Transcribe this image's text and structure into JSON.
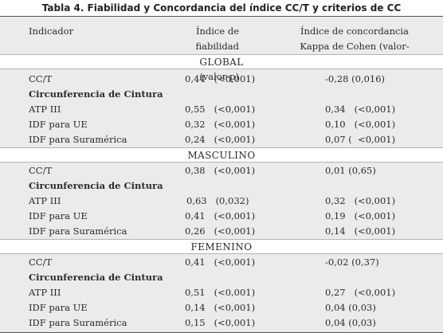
{
  "title": "Tabla 4. Fiabilidad y Concordancia del índice CC/T y criterios de CC",
  "headers": {
    "indicador": "Indicador",
    "fiabilidad_1": "Índice de fiabilidad",
    "fiabilidad_2": "α-Cronbach (valor-p)",
    "concordancia_1": "Índice de concordancia",
    "concordancia_2": "Kappa de Cohen (valor-p)"
  },
  "sections": [
    {
      "label": "GLOBAL",
      "rows": [
        {
          "indicador": "CC/T",
          "fiabilidad": "0,44   (<0,001)",
          "concordancia": "-0,28 (0,016)"
        },
        {
          "indicador": "Circunferencia de Cintura",
          "fiabilidad": "",
          "concordancia": "",
          "subheader": true
        },
        {
          "indicador": "ATP III",
          "fiabilidad": "0,55   (<0,001)",
          "concordancia": "0,34   (<0,001)"
        },
        {
          "indicador": "IDF para UE",
          "fiabilidad": "0,32   (<0,001)",
          "concordancia": "0,10   (<0,001)"
        },
        {
          "indicador": "IDF para Suramérica",
          "fiabilidad": "0,24   (<0,001)",
          "concordancia": "0,07 (  <0,001)"
        }
      ]
    },
    {
      "label": "MASCULINO",
      "rows": [
        {
          "indicador": "CC/T",
          "fiabilidad": "0,38   (<0,001)",
          "concordancia": "0,01 (0,65)"
        },
        {
          "indicador": "Circunferencia de Cintura",
          "fiabilidad": "",
          "concordancia": "",
          "subheader": true
        },
        {
          "indicador": "ATP III",
          "fiabilidad": "0,63   (0,032)",
          "concordancia": "0,32   (<0,001)"
        },
        {
          "indicador": "IDF para UE",
          "fiabilidad": "0,41   (<0,001)",
          "concordancia": "0,19   (<0,001)"
        },
        {
          "indicador": "IDF para Suramérica",
          "fiabilidad": "0,26   (<0,001)",
          "concordancia": "0,14   (<0,001)"
        }
      ]
    },
    {
      "label": "FEMENINO",
      "rows": [
        {
          "indicador": "CC/T",
          "fiabilidad": "0,41   (<0,001)",
          "concordancia": "-0,02 (0,37)"
        },
        {
          "indicador": "Circunferencia de Cintura",
          "fiabilidad": "",
          "concordancia": "",
          "subheader": true
        },
        {
          "indicador": "ATP III",
          "fiabilidad": "0,51   (<0,001)",
          "concordancia": "0,27   (<0,001)"
        },
        {
          "indicador": "IDF para UE",
          "fiabilidad": "0,14   (<0,001)",
          "concordancia": "0,04 (0,03)"
        },
        {
          "indicador": "IDF para Suramérica",
          "fiabilidad": "0,15   (<0,001)",
          "concordancia": "0,04 (0,03)"
        }
      ]
    }
  ]
}
